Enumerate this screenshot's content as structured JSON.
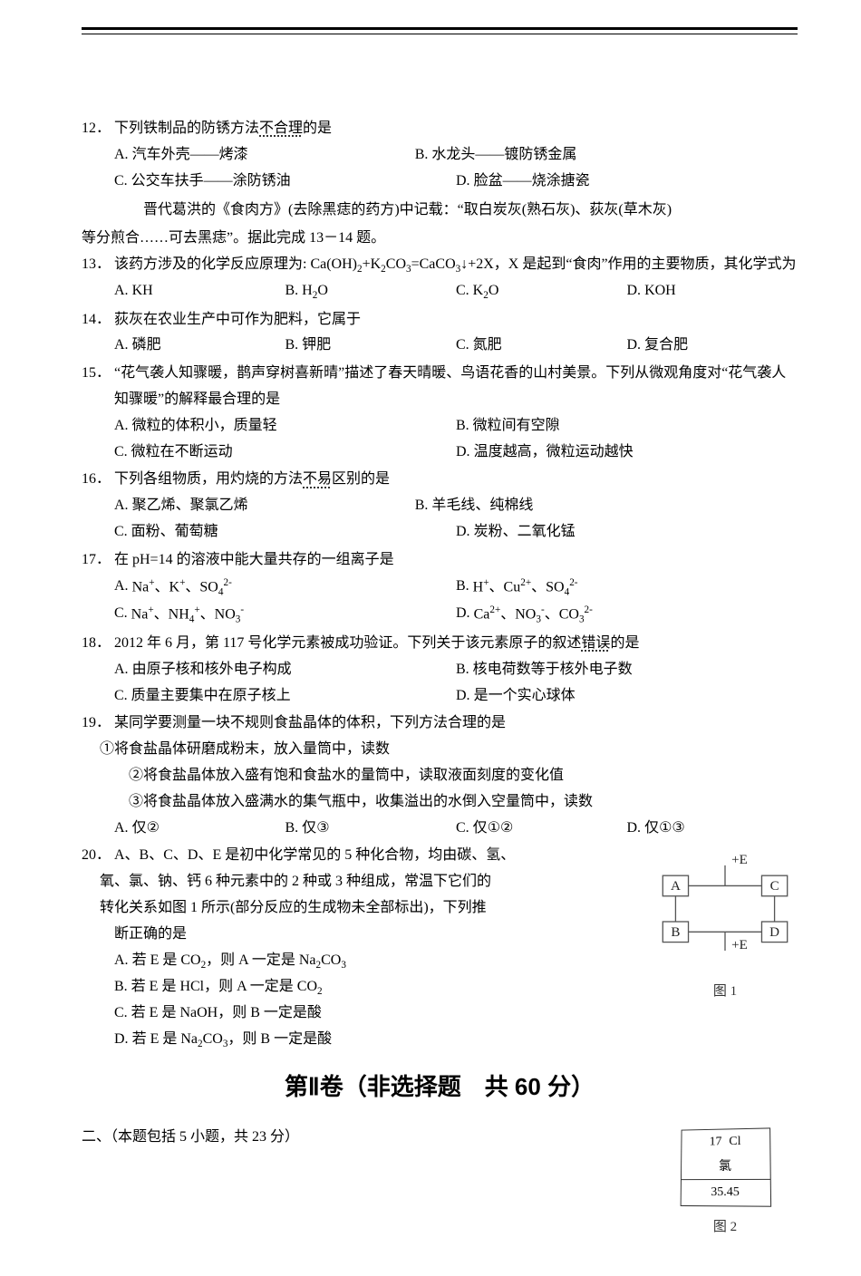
{
  "questions": [
    {
      "num": "12．",
      "stem_prefix": "下列铁制品的防锈方法",
      "stem_underdot": "不合理",
      "stem_suffix": "的是",
      "opt_layout": "2row",
      "opts": [
        {
          "l": "A.",
          "t": "汽车外壳——烤漆"
        },
        {
          "l": "B.",
          "t": "水龙头——镀防锈金属"
        },
        {
          "l": "C.",
          "t": "公交车扶手——涂防锈油"
        },
        {
          "l": "D.",
          "t": "脸盆——烧涂搪瓷"
        }
      ]
    },
    {
      "context": "晋代葛洪的《食肉方》(去除黑痣的药方)中记载：“取白炭灰(熟石灰)、荻灰(草木灰)等分煎合……可去黑痣”。据此完成 13－14 题。"
    },
    {
      "num": "13．",
      "stem_html": "该药方涉及的化学反应原理为: Ca(OH)<sub>2</sub>+K<sub>2</sub>CO<sub>3</sub>=CaCO<sub>3</sub>↓+2X，X 是起到“食肉”作用的主要物质，其化学式为",
      "opt_layout": "row4",
      "opts": [
        {
          "l": "A.",
          "h": "KH"
        },
        {
          "l": "B.",
          "h": "H<sub>2</sub>O"
        },
        {
          "l": "C.",
          "h": "K<sub>2</sub>O"
        },
        {
          "l": "D.",
          "h": "KOH"
        }
      ]
    },
    {
      "num": "14．",
      "stem": "荻灰在农业生产中可作为肥料，它属于",
      "opt_layout": "row4",
      "opts": [
        {
          "l": "A.",
          "t": "磷肥"
        },
        {
          "l": "B.",
          "t": "钾肥"
        },
        {
          "l": "C.",
          "t": "氮肥"
        },
        {
          "l": "D.",
          "t": "复合肥"
        }
      ]
    },
    {
      "num": "15．",
      "stem": "“花气袭人知骤暖，鹊声穿树喜新晴”描述了春天晴暖、鸟语花香的山村美景。下列从微观角度对“花气袭人知骤暖”的解释最合理的是",
      "opt_layout": "2x2",
      "opts": [
        {
          "l": "A.",
          "t": "微粒的体积小，质量轻"
        },
        {
          "l": "B.",
          "t": "微粒间有空隙"
        },
        {
          "l": "C.",
          "t": "微粒在不断运动"
        },
        {
          "l": "D.",
          "t": "温度越高，微粒运动越快"
        }
      ]
    },
    {
      "num": "16．",
      "stem_prefix": "下列各组物质，用灼烧的方法",
      "stem_underdot": "不易",
      "stem_suffix": "区别的是",
      "opt_layout": "2row",
      "opts": [
        {
          "l": "A.",
          "t": "聚乙烯、聚氯乙烯"
        },
        {
          "l": "B.",
          "t": "羊毛线、纯棉线"
        },
        {
          "l": "C.",
          "t": "面粉、葡萄糖"
        },
        {
          "l": "D.",
          "t": "炭粉、二氧化锰"
        }
      ]
    },
    {
      "num": "17．",
      "stem": "在 pH=14 的溶液中能大量共存的一组离子是",
      "opt_layout": "2x2",
      "opts": [
        {
          "l": "A.",
          "h": "Na<sup>+</sup>、K<sup>+</sup>、SO<sub>4</sub><sup>2-</sup>"
        },
        {
          "l": "B.",
          "h": "H<sup>+</sup>、Cu<sup>2+</sup>、SO<sub>4</sub><sup>2-</sup>"
        },
        {
          "l": "C.",
          "h": "Na<sup>+</sup>、NH<sub>4</sub><sup>+</sup>、NO<sub>3</sub><sup>-</sup>"
        },
        {
          "l": "D.",
          "h": "Ca<sup>2+</sup>、NO<sub>3</sub><sup>-</sup>、CO<sub>3</sub><sup>2-</sup>"
        }
      ]
    },
    {
      "num": "18．",
      "stem_prefix": "2012 年 6 月，第 117 号化学元素被成功验证。下列关于该元素原子的叙述",
      "stem_underdot": "错误",
      "stem_suffix": "的是",
      "opt_layout": "2x2",
      "opts": [
        {
          "l": "A.",
          "t": "由原子核和核外电子构成"
        },
        {
          "l": "B.",
          "t": "核电荷数等于核外电子数"
        },
        {
          "l": "C.",
          "t": "质量主要集中在原子核上"
        },
        {
          "l": "D.",
          "t": "是一个实心球体"
        }
      ]
    },
    {
      "num": "19．",
      "stem": "某同学要测量一块不规则食盐晶体的体积，下列方法合理的是",
      "subitems": [
        "①将食盐晶体研磨成粉末，放入量筒中，读数",
        "②将食盐晶体放入盛有饱和食盐水的量筒中，读取液面刻度的变化值",
        "③将食盐晶体放入盛满水的集气瓶中，收集溢出的水倒入空量筒中，读数"
      ],
      "opt_layout": "row4",
      "opts": [
        {
          "l": "A.",
          "h": "仅<span class='circ'>②</span>"
        },
        {
          "l": "B.",
          "h": "仅<span class='circ'>③</span>"
        },
        {
          "l": "C.",
          "h": "仅<span class='circ'>①②</span>"
        },
        {
          "l": "D.",
          "h": "仅<span class='circ'>①③</span>"
        }
      ]
    },
    {
      "num": "20．",
      "stem_prefix_lines": [
        "A、B、C、D、E 是初中化学常见的 5 种化合物，均由碳、氢、",
        "氧、氯、钠、钙 6 种元素中的 2 种或 3 种组成，常温下它们的",
        "转化关系如图 1 所示(部分反应的生成物未全部标出)，下列推"
      ],
      "stem_last": "断正确的是",
      "opts_vertical": [
        {
          "l": "A.",
          "h": "若 E 是 CO<sub>2</sub>，则 A 一定是 Na<sub>2</sub>CO<sub>3</sub>"
        },
        {
          "l": "B.",
          "h": "若 E 是 HCl，则 A 一定是 CO<sub>2</sub>"
        },
        {
          "l": "C.",
          "h": "若 E 是 NaOH，则 B 一定是酸"
        },
        {
          "l": "D.",
          "h": "若 E 是 Na<sub>2</sub>CO<sub>3</sub>，则 B 一定是酸"
        }
      ]
    }
  ],
  "section2_title": "第Ⅱ卷（非选择题　共 60 分）",
  "subsection2": "二、（本题包括 5 小题，共 23 分）",
  "fig1": {
    "label": "图 1",
    "nodes": {
      "A": "A",
      "B": "B",
      "C": "C",
      "D": "D"
    },
    "edge_label": "+E",
    "stroke": "#555555",
    "fill": "#ffffff",
    "text": "#222222"
  },
  "fig2": {
    "label": "图 2",
    "atomic_number": "17",
    "symbol": "Cl",
    "name": "氯",
    "mass": "35.45",
    "border": "#404040"
  },
  "colors": {
    "text": "#000000",
    "bg": "#ffffff",
    "rule": "#000000"
  }
}
